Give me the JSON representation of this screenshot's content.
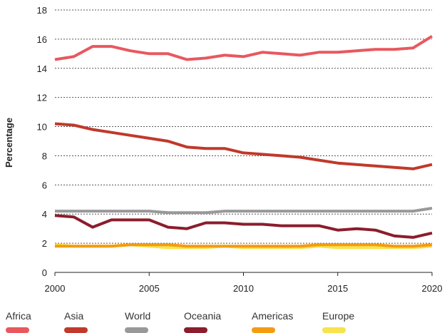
{
  "chart_data": {
    "type": "line",
    "xlabel": "",
    "ylabel": "Percentage",
    "xlim": [
      2000,
      2020
    ],
    "ylim": [
      0,
      18
    ],
    "x_ticks": [
      "2000",
      "2005",
      "2010",
      "2015",
      "2020"
    ],
    "y_ticks": [
      "0",
      "2",
      "4",
      "6",
      "8",
      "10",
      "12",
      "14",
      "16",
      "18"
    ],
    "grid": "horizontal dotted",
    "legend_position": "bottom",
    "x": [
      2000,
      2001,
      2002,
      2003,
      2004,
      2005,
      2006,
      2007,
      2008,
      2009,
      2010,
      2011,
      2012,
      2013,
      2014,
      2015,
      2016,
      2017,
      2018,
      2019,
      2020
    ],
    "series": [
      {
        "name": "Africa",
        "color": "#e8585f",
        "values": [
          14.6,
          14.8,
          15.5,
          15.5,
          15.2,
          15.0,
          15.0,
          14.6,
          14.7,
          14.9,
          14.8,
          15.1,
          15.0,
          14.9,
          15.1,
          15.1,
          15.2,
          15.3,
          15.3,
          15.4,
          16.2
        ]
      },
      {
        "name": "Asia",
        "color": "#c0392b",
        "values": [
          10.2,
          10.1,
          9.8,
          9.6,
          9.4,
          9.2,
          9.0,
          8.6,
          8.5,
          8.5,
          8.2,
          8.1,
          8.0,
          7.9,
          7.7,
          7.5,
          7.4,
          7.3,
          7.2,
          7.1,
          7.4
        ]
      },
      {
        "name": "World",
        "color": "#999999",
        "values": [
          4.2,
          4.2,
          4.2,
          4.2,
          4.2,
          4.2,
          4.1,
          4.1,
          4.1,
          4.2,
          4.2,
          4.2,
          4.2,
          4.2,
          4.2,
          4.2,
          4.2,
          4.2,
          4.2,
          4.2,
          4.4
        ]
      },
      {
        "name": "Oceania",
        "color": "#8b1d2c",
        "values": [
          3.9,
          3.8,
          3.1,
          3.6,
          3.6,
          3.6,
          3.1,
          3.0,
          3.4,
          3.4,
          3.3,
          3.3,
          3.2,
          3.2,
          3.2,
          2.9,
          3.0,
          2.9,
          2.5,
          2.4,
          2.7
        ]
      },
      {
        "name": "Americas",
        "color": "#f39c12",
        "values": [
          1.8,
          1.8,
          1.8,
          1.8,
          1.9,
          1.9,
          1.9,
          1.8,
          1.8,
          1.8,
          1.8,
          1.8,
          1.8,
          1.8,
          1.9,
          1.9,
          1.9,
          1.9,
          1.8,
          1.8,
          1.9
        ]
      },
      {
        "name": "Europe",
        "color": "#f7e34a",
        "values": [
          1.9,
          1.8,
          1.8,
          1.8,
          1.9,
          1.8,
          1.7,
          1.7,
          1.7,
          1.8,
          1.7,
          1.7,
          1.7,
          1.7,
          1.8,
          1.7,
          1.7,
          1.7,
          1.7,
          1.7,
          1.8
        ]
      }
    ]
  }
}
